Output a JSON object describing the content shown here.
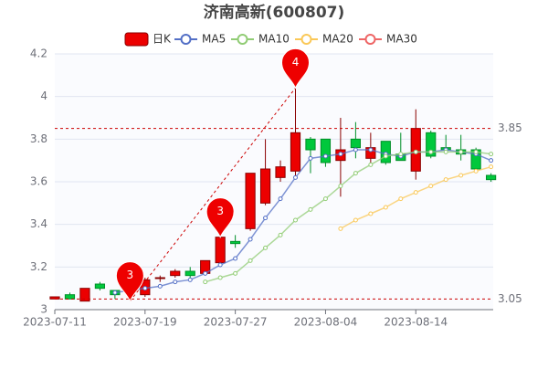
{
  "chart_data": {
    "type": "candlestick",
    "title": "济南高新(600807)",
    "categories": [
      "2023-07-11",
      null,
      null,
      null,
      null,
      null,
      "2023-07-19",
      null,
      null,
      null,
      null,
      null,
      "2023-07-27",
      null,
      null,
      null,
      null,
      null,
      "2023-08-04",
      null,
      null,
      null,
      null,
      null,
      "2023-08-14",
      null,
      null,
      null,
      null,
      null
    ],
    "series": [
      {
        "name": "日K",
        "color": "#ec0000",
        "down_color": "#00c83c",
        "open": [
          3.05,
          3.07,
          3.04,
          3.12,
          3.09,
          3.12,
          3.07,
          3.15,
          3.16,
          3.18,
          3.17,
          3.22,
          3.32,
          3.38,
          3.5,
          3.62,
          3.65,
          3.8,
          3.8,
          3.7,
          3.8,
          3.71,
          3.79,
          3.73,
          3.65,
          3.83,
          3.76,
          3.75,
          3.75,
          3.63
        ],
        "close": [
          3.06,
          3.05,
          3.1,
          3.1,
          3.07,
          3.1,
          3.14,
          3.15,
          3.18,
          3.16,
          3.23,
          3.34,
          3.31,
          3.64,
          3.66,
          3.67,
          3.83,
          3.75,
          3.69,
          3.75,
          3.76,
          3.76,
          3.69,
          3.7,
          3.85,
          3.72,
          3.75,
          3.73,
          3.66,
          3.61
        ],
        "high": [
          3.06,
          3.08,
          3.1,
          3.13,
          3.09,
          3.13,
          3.15,
          3.16,
          3.19,
          3.2,
          3.23,
          3.34,
          3.35,
          3.64,
          3.8,
          3.7,
          4.04,
          3.81,
          3.8,
          3.9,
          3.88,
          3.83,
          3.79,
          3.83,
          3.94,
          3.84,
          3.82,
          3.82,
          3.76,
          3.64
        ],
        "low": [
          3.05,
          3.05,
          3.04,
          3.09,
          3.05,
          3.04,
          3.06,
          3.13,
          3.15,
          3.15,
          3.16,
          3.2,
          3.29,
          3.37,
          3.49,
          3.6,
          3.62,
          3.64,
          3.67,
          3.53,
          3.71,
          3.69,
          3.68,
          3.7,
          3.61,
          3.71,
          3.73,
          3.7,
          3.65,
          3.6
        ]
      },
      {
        "name": "MA5",
        "color": "#5470c6",
        "values": [
          null,
          null,
          null,
          null,
          3.08,
          3.09,
          3.1,
          3.11,
          3.13,
          3.14,
          3.17,
          3.21,
          3.24,
          3.33,
          3.43,
          3.52,
          3.62,
          3.71,
          3.72,
          3.73,
          3.75,
          3.75,
          3.73,
          3.72,
          3.74,
          3.74,
          3.75,
          3.74,
          3.73,
          3.7
        ]
      },
      {
        "name": "MA10",
        "color": "#91cc75",
        "values": [
          null,
          null,
          null,
          null,
          null,
          null,
          null,
          null,
          null,
          null,
          3.13,
          3.15,
          3.17,
          3.23,
          3.29,
          3.35,
          3.42,
          3.47,
          3.52,
          3.58,
          3.64,
          3.68,
          3.72,
          3.73,
          3.74,
          3.74,
          3.74,
          3.74,
          3.74,
          3.73
        ]
      },
      {
        "name": "MA20",
        "color": "#fac858",
        "values": [
          null,
          null,
          null,
          null,
          null,
          null,
          null,
          null,
          null,
          null,
          null,
          null,
          null,
          null,
          null,
          null,
          null,
          null,
          null,
          3.38,
          3.42,
          3.45,
          3.48,
          3.52,
          3.55,
          3.58,
          3.61,
          3.63,
          3.65,
          3.67
        ]
      },
      {
        "name": "MA30",
        "color": "#ee6666",
        "values": [
          null,
          null,
          null,
          null,
          null,
          null,
          null,
          null,
          null,
          null,
          null,
          null,
          null,
          null,
          null,
          null,
          null,
          null,
          null,
          null,
          null,
          null,
          null,
          null,
          null,
          null,
          null,
          null,
          null,
          null
        ]
      }
    ],
    "mark_points": [
      {
        "index": 5,
        "value": 3.04,
        "label": "3"
      },
      {
        "index": 11,
        "value": 3.34,
        "label": "3"
      },
      {
        "index": 16,
        "value": 4.04,
        "label": "4"
      }
    ],
    "mark_lines": [
      {
        "value": 3.85,
        "label": "3.85"
      },
      {
        "value": 3.05,
        "label": "3.05"
      }
    ],
    "ylim": [
      3,
      4.2
    ],
    "yticks": [
      3,
      3.2,
      3.4,
      3.6,
      3.8,
      4,
      4.2
    ],
    "grid": true
  }
}
